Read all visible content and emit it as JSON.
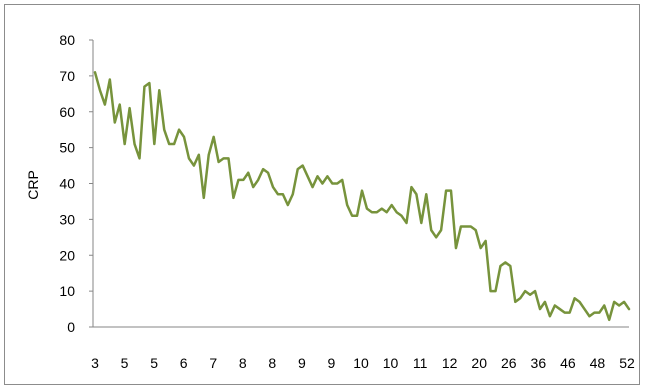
{
  "chart_data": {
    "type": "line",
    "title": "",
    "xlabel": "",
    "ylabel": "CRP",
    "ylim": [
      0,
      80
    ],
    "y_ticks": [
      "0",
      "10",
      "20",
      "30",
      "40",
      "50",
      "60",
      "70",
      "80"
    ],
    "x_tick_labels": [
      "3",
      "5",
      "5",
      "6",
      "7",
      "8",
      "8",
      "9",
      "9",
      "10",
      "10",
      "11",
      "12",
      "20",
      "26",
      "36",
      "46",
      "48",
      "52"
    ],
    "grid": false,
    "legend": "none",
    "colors": {
      "series": "#77933c",
      "axis": "#868686"
    },
    "series": [
      {
        "name": "",
        "values": [
          71,
          66,
          62,
          69,
          57,
          62,
          51,
          61,
          51,
          47,
          67,
          68,
          51,
          66,
          55,
          51,
          51,
          55,
          53,
          47,
          45,
          48,
          36,
          48,
          53,
          46,
          47,
          47,
          36,
          41,
          41,
          43,
          39,
          41,
          44,
          43,
          39,
          37,
          37,
          34,
          37,
          44,
          45,
          42,
          39,
          42,
          40,
          42,
          40,
          40,
          41,
          34,
          31,
          31,
          38,
          33,
          32,
          32,
          33,
          32,
          34,
          32,
          31,
          29,
          39,
          37,
          29,
          37,
          27,
          25,
          27,
          38,
          38,
          22,
          28,
          28,
          28,
          27,
          22,
          24,
          10,
          10,
          17,
          18,
          17,
          7,
          8,
          10,
          9,
          10,
          5,
          7,
          3,
          6,
          5,
          4,
          4,
          8,
          7,
          5,
          3,
          4,
          4,
          6,
          2,
          7,
          6,
          7,
          5
        ]
      }
    ]
  }
}
